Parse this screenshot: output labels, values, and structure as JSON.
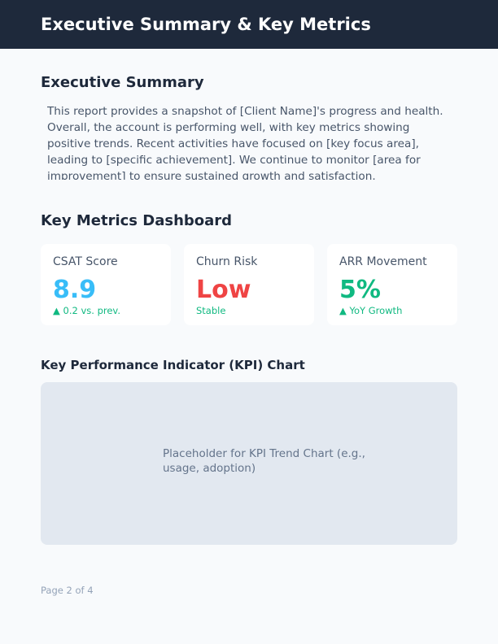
{
  "header": {
    "title": "Executive Summary & Key Metrics"
  },
  "summary": {
    "heading": "Executive Summary",
    "text": "This report provides a snapshot of [Client Name]'s progress and health. Overall, the account is performing well, with key metrics showing positive trends. Recent activities have focused on [key focus area], leading to [specific achievement]. We continue to monitor [area for improvement] to ensure sustained growth and satisfaction."
  },
  "dashboard": {
    "heading": "Key Metrics Dashboard",
    "cards": [
      {
        "label": "CSAT Score",
        "value": "8.9",
        "sub": "0.2 vs. prev.",
        "arrow": "▲",
        "color": "#38bdf8"
      },
      {
        "label": "Churn Risk",
        "value": "Low",
        "sub": "Stable",
        "arrow": "",
        "color": "#ef4444"
      },
      {
        "label": "ARR Movement",
        "value": "5%",
        "sub": "YoY Growth",
        "arrow": "▲",
        "color": "#10b981"
      }
    ]
  },
  "chart": {
    "heading": "Key Performance Indicator (KPI) Chart",
    "placeholder": "Placeholder for KPI Trend Chart (e.g., usage, adoption)"
  },
  "footer": {
    "page": "Page 2 of 4"
  }
}
